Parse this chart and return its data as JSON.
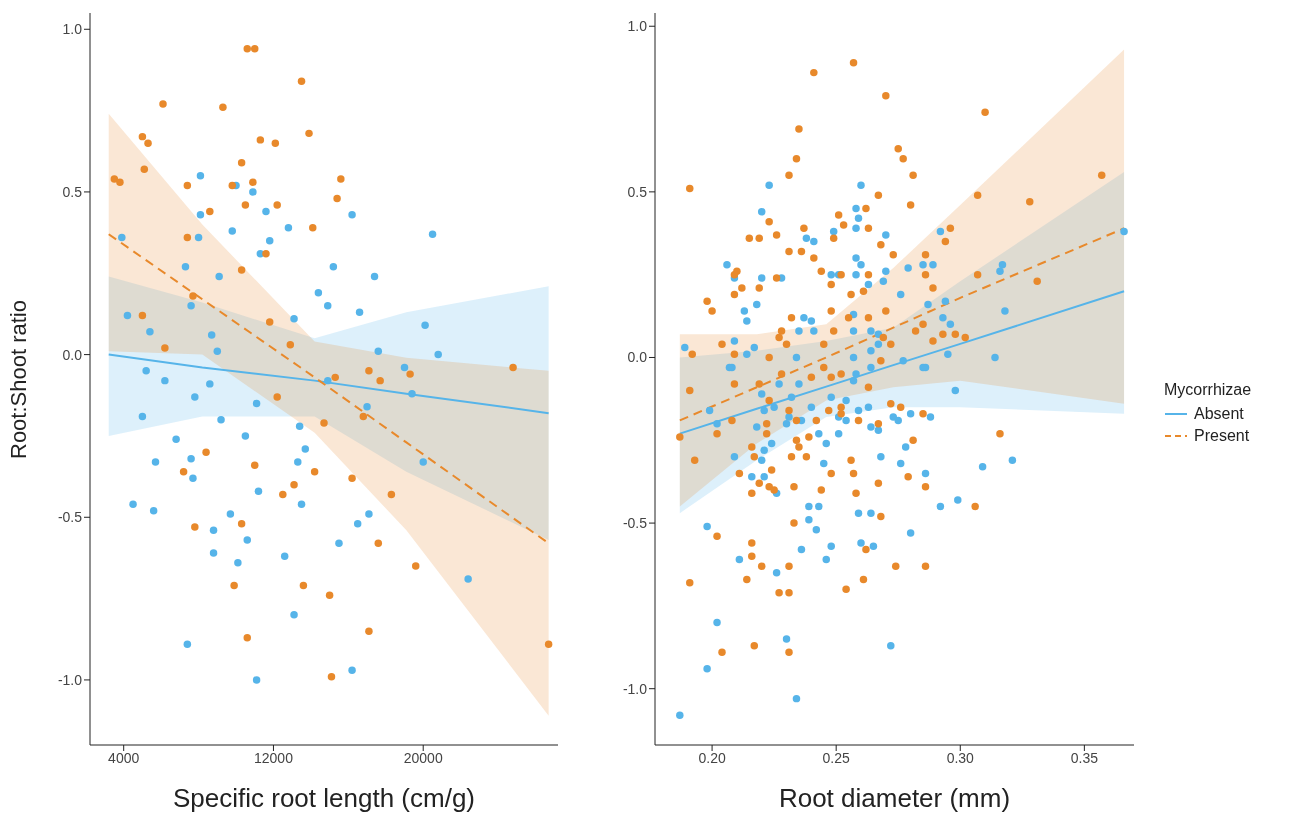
{
  "chart_data": [
    {
      "type": "scatter",
      "xlabel": "Specific root length (cm/g)",
      "ylabel": "Root:Shoot ratio",
      "xlim": [
        2200,
        27200
      ],
      "xticks": [
        4000,
        12000,
        20000
      ],
      "ylim": [
        -1.2,
        1.05
      ],
      "yticks": [
        {
          "value": -1,
          "label": "-1.0"
        },
        {
          "value": -0.5,
          "label": "-0.5"
        },
        {
          "value": 0,
          "label": "0.0"
        },
        {
          "value": 0.5,
          "label": "0.5"
        },
        {
          "value": 1,
          "label": "1.0"
        }
      ],
      "series": [
        {
          "marker": "circle",
          "color": "#56b4e9",
          "x": [
            8100,
            10000,
            10900,
            8100,
            11600,
            16200,
            9800,
            12800,
            20500,
            3900,
            8000,
            11800,
            11300,
            7300,
            15200,
            17400,
            9100,
            14400,
            14900,
            7600,
            4200,
            16600,
            13100,
            5400,
            8700,
            20100,
            17600,
            20800,
            9000,
            5200,
            19000,
            6200,
            8600,
            7800,
            11100,
            5000,
            9200,
            6800,
            10500,
            13400,
            13700,
            5700,
            7600,
            13300,
            7700,
            11200,
            4500,
            5600,
            13500,
            9700,
            16500,
            17100,
            8800,
            10600,
            8800,
            10100,
            12600,
            15500,
            20000,
            17000,
            19400,
            22400,
            13100,
            7400,
            16200,
            11100,
            14900
          ],
          "values": [
            0.55,
            0.52,
            0.5,
            0.43,
            0.44,
            0.43,
            0.38,
            0.39,
            0.37,
            0.36,
            0.36,
            0.35,
            0.31,
            0.27,
            0.27,
            0.24,
            0.24,
            0.19,
            0.15,
            0.15,
            0.12,
            0.13,
            0.11,
            0.07,
            0.06,
            0.09,
            0.01,
            0,
            0.01,
            -0.05,
            -0.04,
            -0.08,
            -0.09,
            -0.13,
            -0.15,
            -0.19,
            -0.2,
            -0.26,
            -0.25,
            -0.22,
            -0.29,
            -0.33,
            -0.32,
            -0.33,
            -0.38,
            -0.42,
            -0.46,
            -0.48,
            -0.46,
            -0.49,
            -0.52,
            -0.49,
            -0.54,
            -0.57,
            -0.61,
            -0.64,
            -0.62,
            -0.58,
            -0.33,
            -0.16,
            -0.12,
            -0.69,
            -0.8,
            -0.89,
            -0.97,
            -1,
            -0.08
          ]
        },
        {
          "marker": "circle",
          "color": "#e8892b",
          "x": [
            3500,
            3800,
            5100,
            5000,
            5300,
            6100,
            10600,
            11000,
            13500,
            9300,
            11300,
            13900,
            12100,
            10300,
            9800,
            10900,
            7400,
            8600,
            10500,
            12200,
            15600,
            15400,
            14100,
            11600,
            7400,
            10300,
            5000,
            7700,
            6200,
            11800,
            12900,
            15300,
            17700,
            19300,
            12200,
            17100,
            16800,
            14700,
            8400,
            11000,
            14200,
            16200,
            12500,
            7200,
            13100,
            10300,
            7800,
            18300,
            17600,
            19600,
            9900,
            13600,
            15000,
            10600,
            17100,
            15100,
            26700,
            24800
          ],
          "values": [
            0.54,
            0.53,
            0.57,
            0.67,
            0.65,
            0.77,
            0.94,
            0.94,
            0.84,
            0.76,
            0.66,
            0.68,
            0.65,
            0.59,
            0.52,
            0.53,
            0.52,
            0.44,
            0.46,
            0.46,
            0.54,
            0.48,
            0.39,
            0.31,
            0.36,
            0.26,
            0.12,
            0.18,
            0.02,
            0.1,
            0.03,
            -0.07,
            -0.08,
            -0.06,
            -0.13,
            -0.05,
            -0.19,
            -0.21,
            -0.3,
            -0.34,
            -0.36,
            -0.38,
            -0.43,
            -0.36,
            -0.4,
            -0.52,
            -0.53,
            -0.43,
            -0.58,
            -0.65,
            -0.71,
            -0.71,
            -0.74,
            -0.87,
            -0.85,
            -0.99,
            -0.89,
            -0.04
          ]
        },
        {
          "type": "line",
          "color": "#56b4e9",
          "line_style": "solid",
          "x": [
            3200,
            8200,
            14200,
            19100,
            26700
          ],
          "values": [
            0,
            -0.04,
            -0.08,
            -0.12,
            -0.18
          ],
          "lower": [
            -0.25,
            -0.19,
            -0.19,
            -0.36,
            -0.57
          ],
          "upper": [
            0.24,
            0.16,
            0.05,
            0.13,
            0.21
          ]
        },
        {
          "type": "line",
          "color": "#e8892b",
          "line_style": "dashed",
          "x": [
            3200,
            8200,
            14200,
            19100,
            26700
          ],
          "values": [
            0.37,
            0.17,
            -0.07,
            -0.27,
            -0.58
          ],
          "lower": [
            0.01,
            0,
            -0.24,
            -0.54,
            -1.11
          ],
          "upper": [
            0.74,
            0.4,
            0.04,
            -0.01,
            -0.05
          ]
        }
      ]
    },
    {
      "type": "scatter",
      "xlabel": "Root diameter (mm)",
      "xlim": [
        0.177,
        0.37
      ],
      "xticks": [
        {
          "value": 0.2,
          "label": "0.20"
        },
        {
          "value": 0.25,
          "label": "0.25"
        },
        {
          "value": 0.3,
          "label": "0.30"
        },
        {
          "value": 0.35,
          "label": "0.35"
        }
      ],
      "ylim": [
        -1.17,
        1.04
      ],
      "yticks": [
        {
          "value": -1,
          "label": "-1.0"
        },
        {
          "value": -0.5,
          "label": "-0.5"
        },
        {
          "value": 0,
          "label": "0.0"
        },
        {
          "value": 0.5,
          "label": "0.5"
        },
        {
          "value": 1,
          "label": "1.0"
        }
      ],
      "legend": "right",
      "legend_title": "Mycorrhizae",
      "series": [
        {
          "marker": "circle",
          "color": "#56b4e9",
          "x": [
            0.223,
            0.26,
            0.22,
            0.258,
            0.259,
            0.258,
            0.249,
            0.238,
            0.241,
            0.27,
            0.292,
            0.366,
            0.206,
            0.209,
            0.22,
            0.228,
            0.258,
            0.26,
            0.248,
            0.251,
            0.258,
            0.263,
            0.269,
            0.27,
            0.279,
            0.285,
            0.289,
            0.316,
            0.317,
            0.276,
            0.287,
            0.294,
            0.318,
            0.213,
            0.218,
            0.214,
            0.237,
            0.24,
            0.257,
            0.293,
            0.296,
            0.235,
            0.241,
            0.257,
            0.264,
            0.267,
            0.189,
            0.209,
            0.217,
            0.214,
            0.234,
            0.257,
            0.264,
            0.267,
            0.295,
            0.314,
            0.208,
            0.277,
            0.286,
            0.207,
            0.285,
            0.199,
            0.202,
            0.22,
            0.221,
            0.227,
            0.235,
            0.232,
            0.225,
            0.231,
            0.23,
            0.236,
            0.24,
            0.248,
            0.254,
            0.251,
            0.254,
            0.259,
            0.263,
            0.258,
            0.264,
            0.257,
            0.273,
            0.275,
            0.28,
            0.288,
            0.298,
            0.209,
            0.218,
            0.22,
            0.221,
            0.224,
            0.216,
            0.221,
            0.226,
            0.243,
            0.246,
            0.251,
            0.245,
            0.264,
            0.267,
            0.268,
            0.276,
            0.278,
            0.286,
            0.239,
            0.243,
            0.239,
            0.242,
            0.259,
            0.264,
            0.292,
            0.299,
            0.309,
            0.321,
            0.198,
            0.211,
            0.226,
            0.236,
            0.248,
            0.246,
            0.26,
            0.265,
            0.28,
            0.202,
            0.198,
            0.23,
            0.272,
            0.234,
            0.187
          ],
          "values": [
            0.52,
            0.52,
            0.44,
            0.45,
            0.42,
            0.39,
            0.38,
            0.36,
            0.35,
            0.37,
            0.38,
            0.38,
            0.28,
            0.24,
            0.24,
            0.24,
            0.3,
            0.28,
            0.25,
            0.25,
            0.25,
            0.22,
            0.23,
            0.26,
            0.27,
            0.28,
            0.28,
            0.26,
            0.28,
            0.19,
            0.16,
            0.17,
            0.14,
            0.14,
            0.16,
            0.11,
            0.12,
            0.11,
            0.13,
            0.12,
            0.1,
            0.08,
            0.08,
            0.08,
            0.08,
            0.07,
            0.03,
            0.05,
            0.03,
            0.01,
            0,
            0,
            0.02,
            0.04,
            0.01,
            0,
            -0.03,
            -0.01,
            -0.03,
            -0.03,
            -0.03,
            -0.16,
            -0.2,
            -0.11,
            -0.16,
            -0.08,
            -0.08,
            -0.12,
            -0.15,
            -0.18,
            -0.2,
            -0.19,
            -0.15,
            -0.12,
            -0.13,
            -0.18,
            -0.19,
            -0.16,
            -0.15,
            -0.05,
            -0.03,
            -0.07,
            -0.18,
            -0.19,
            -0.17,
            -0.18,
            -0.1,
            -0.3,
            -0.21,
            -0.31,
            -0.28,
            -0.26,
            -0.36,
            -0.36,
            -0.41,
            -0.23,
            -0.26,
            -0.23,
            -0.32,
            -0.21,
            -0.22,
            -0.3,
            -0.32,
            -0.27,
            -0.35,
            -0.45,
            -0.45,
            -0.49,
            -0.52,
            -0.47,
            -0.47,
            -0.45,
            -0.43,
            -0.33,
            -0.31,
            -0.51,
            -0.61,
            -0.65,
            -0.58,
            -0.57,
            -0.61,
            -0.56,
            -0.57,
            -0.53,
            -0.8,
            -0.94,
            -0.85,
            -0.87,
            -1.03,
            -1.08
          ]
        },
        {
          "marker": "circle",
          "color": "#e8892b",
          "x": [
            0.191,
            0.257,
            0.241,
            0.27,
            0.31,
            0.235,
            0.234,
            0.275,
            0.277,
            0.281,
            0.231,
            0.357,
            0.307,
            0.328,
            0.28,
            0.267,
            0.262,
            0.251,
            0.223,
            0.237,
            0.253,
            0.263,
            0.215,
            0.219,
            0.226,
            0.249,
            0.296,
            0.294,
            0.268,
            0.231,
            0.236,
            0.241,
            0.273,
            0.286,
            0.21,
            0.244,
            0.252,
            0.263,
            0.286,
            0.307,
            0.331,
            0.209,
            0.226,
            0.212,
            0.219,
            0.248,
            0.261,
            0.256,
            0.209,
            0.289,
            0.198,
            0.2,
            0.248,
            0.27,
            0.232,
            0.255,
            0.263,
            0.228,
            0.249,
            0.285,
            0.282,
            0.293,
            0.298,
            0.302,
            0.204,
            0.227,
            0.245,
            0.269,
            0.272,
            0.289,
            0.192,
            0.209,
            0.223,
            0.23,
            0.268,
            0.191,
            0.209,
            0.219,
            0.228,
            0.24,
            0.248,
            0.252,
            0.245,
            0.187,
            0.202,
            0.208,
            0.223,
            0.222,
            0.222,
            0.231,
            0.234,
            0.242,
            0.247,
            0.252,
            0.252,
            0.259,
            0.263,
            0.267,
            0.272,
            0.276,
            0.285,
            0.193,
            0.211,
            0.216,
            0.217,
            0.224,
            0.219,
            0.216,
            0.223,
            0.225,
            0.233,
            0.232,
            0.234,
            0.235,
            0.239,
            0.238,
            0.248,
            0.244,
            0.256,
            0.257,
            0.258,
            0.267,
            0.281,
            0.279,
            0.286,
            0.316,
            0.306,
            0.233,
            0.268,
            0.202,
            0.216,
            0.216,
            0.22,
            0.231,
            0.214,
            0.191,
            0.227,
            0.231,
            0.254,
            0.261,
            0.262,
            0.274,
            0.286,
            0.217,
            0.204,
            0.231
          ],
          "values": [
            0.51,
            0.89,
            0.86,
            0.79,
            0.74,
            0.69,
            0.6,
            0.63,
            0.6,
            0.55,
            0.55,
            0.55,
            0.49,
            0.47,
            0.46,
            0.49,
            0.45,
            0.43,
            0.41,
            0.39,
            0.4,
            0.39,
            0.36,
            0.36,
            0.37,
            0.36,
            0.39,
            0.35,
            0.34,
            0.32,
            0.32,
            0.3,
            0.31,
            0.31,
            0.26,
            0.26,
            0.25,
            0.25,
            0.25,
            0.25,
            0.23,
            0.25,
            0.24,
            0.21,
            0.21,
            0.22,
            0.2,
            0.19,
            0.19,
            0.21,
            0.17,
            0.14,
            0.14,
            0.14,
            0.12,
            0.12,
            0.12,
            0.08,
            0.08,
            0.1,
            0.08,
            0.07,
            0.07,
            0.06,
            0.04,
            0.06,
            0.04,
            0.06,
            0.04,
            0.05,
            0.01,
            0.01,
            0,
            0.04,
            -0.01,
            -0.1,
            -0.08,
            -0.08,
            -0.05,
            -0.06,
            -0.06,
            -0.05,
            -0.03,
            -0.24,
            -0.23,
            -0.19,
            -0.13,
            -0.2,
            -0.23,
            -0.16,
            -0.19,
            -0.19,
            -0.16,
            -0.15,
            -0.17,
            -0.19,
            -0.09,
            -0.2,
            -0.14,
            -0.15,
            -0.17,
            -0.31,
            -0.35,
            -0.27,
            -0.3,
            -0.34,
            -0.38,
            -0.41,
            -0.39,
            -0.4,
            -0.39,
            -0.3,
            -0.25,
            -0.27,
            -0.24,
            -0.3,
            -0.35,
            -0.4,
            -0.31,
            -0.35,
            -0.41,
            -0.38,
            -0.25,
            -0.36,
            -0.39,
            -0.23,
            -0.45,
            -0.5,
            -0.48,
            -0.54,
            -0.56,
            -0.6,
            -0.63,
            -0.63,
            -0.67,
            -0.68,
            -0.71,
            -0.71,
            -0.7,
            -0.67,
            -0.58,
            -0.63,
            -0.63,
            -0.87,
            -0.89,
            -0.89
          ]
        },
        {
          "type": "line",
          "name": "Absent",
          "color": "#56b4e9",
          "line_style": "solid",
          "x": [
            0.187,
            0.218,
            0.246,
            0.273,
            0.3,
            0.366
          ],
          "values": [
            -0.23,
            -0.155,
            -0.088,
            -0.023,
            0.041,
            0.2
          ],
          "lower": [
            -0.47,
            -0.31,
            -0.18,
            -0.15,
            -0.15,
            -0.17
          ],
          "upper": [
            0,
            0.02,
            0.05,
            0.09,
            0.23,
            0.56
          ]
        },
        {
          "type": "line",
          "name": "Present",
          "color": "#e8892b",
          "line_style": "dashed",
          "x": [
            0.187,
            0.218,
            0.246,
            0.273,
            0.3,
            0.366
          ],
          "values": [
            -0.19,
            -0.09,
            0,
            0.09,
            0.18,
            0.39
          ],
          "lower": [
            -0.45,
            -0.26,
            -0.13,
            -0.09,
            -0.07,
            -0.14
          ],
          "upper": [
            0.07,
            0.07,
            0.1,
            0.27,
            0.46,
            0.93
          ]
        }
      ]
    }
  ]
}
